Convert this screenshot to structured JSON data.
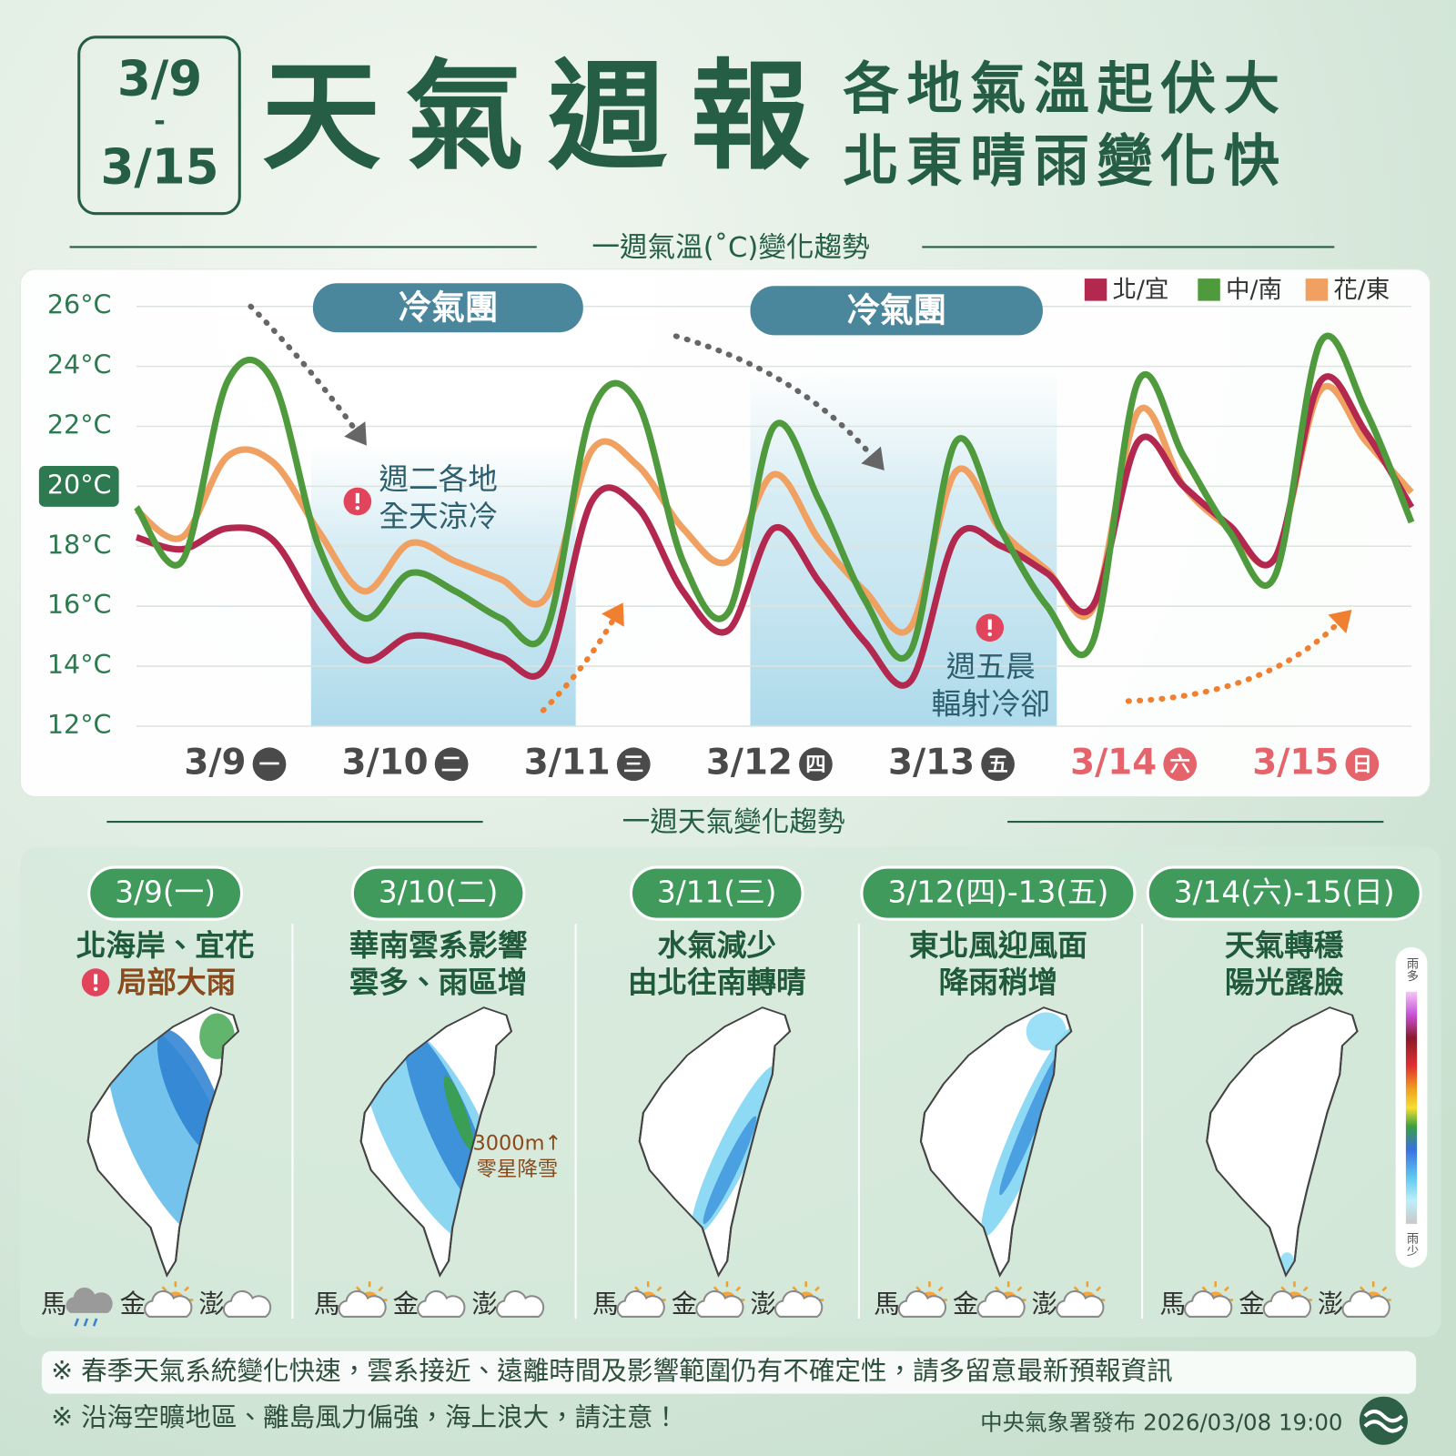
{
  "header": {
    "date_start": "3/9",
    "date_sep": "-",
    "date_end": "3/15",
    "title": "天氣週報",
    "subtitle": [
      "各地氣溫起伏大",
      "北東晴雨變化快"
    ]
  },
  "chart_data": {
    "type": "line",
    "title": "一週氣溫(˚C)變化趨勢",
    "categories": [
      null,
      null,
      "3/9",
      null,
      null,
      null,
      "3/10",
      null,
      null,
      null,
      "3/11",
      null,
      null,
      null,
      "3/12",
      null,
      null,
      null,
      "3/13",
      null,
      null,
      null,
      "3/14",
      null,
      null,
      null,
      "3/15",
      null,
      null
    ],
    "weekdays": [
      null,
      null,
      "一",
      null,
      null,
      null,
      "二",
      null,
      null,
      null,
      "三",
      null,
      null,
      null,
      "四",
      null,
      null,
      null,
      "五",
      null,
      null,
      null,
      "六",
      null,
      null,
      null,
      "日",
      null,
      null
    ],
    "category_colors": [
      null,
      null,
      "#4a4a4a",
      null,
      null,
      null,
      "#4a4a4a",
      null,
      null,
      null,
      "#4a4a4a",
      null,
      null,
      null,
      "#4a4a4a",
      null,
      null,
      null,
      "#4a4a4a",
      null,
      null,
      null,
      "#e5646c",
      null,
      null,
      null,
      "#e5646c",
      null,
      null
    ],
    "series": [
      {
        "name": "北/宜",
        "color": "#b3284f",
        "values": [
          18.3,
          17.9,
          18.6,
          18.2,
          15.8,
          14.2,
          15.0,
          14.8,
          14.3,
          14.0,
          19.5,
          19.3,
          16.5,
          15.2,
          18.6,
          16.8,
          14.8,
          13.5,
          18.3,
          18.0,
          17.1,
          16.0,
          21.5,
          20.0,
          18.7,
          17.6,
          23.5,
          21.8,
          19.3
        ]
      },
      {
        "name": "中/南",
        "color": "#4e9a3c",
        "values": [
          19.3,
          17.5,
          23.5,
          23.5,
          18.0,
          15.6,
          17.1,
          16.5,
          15.6,
          15.2,
          22.5,
          22.8,
          17.5,
          15.8,
          22.0,
          19.5,
          16.2,
          14.5,
          21.5,
          18.5,
          16.0,
          14.8,
          23.5,
          21.0,
          18.5,
          17.0,
          24.8,
          22.5,
          18.8
        ]
      },
      {
        "name": "花/東",
        "color": "#f0a060",
        "values": [
          19.2,
          18.3,
          21.0,
          20.8,
          18.5,
          16.5,
          18.1,
          17.5,
          16.9,
          16.3,
          21.2,
          20.7,
          18.6,
          17.5,
          20.4,
          18.2,
          16.5,
          15.3,
          20.5,
          18.5,
          17.2,
          15.9,
          22.5,
          20.0,
          18.6,
          17.6,
          23.2,
          21.5,
          19.8
        ]
      }
    ],
    "ylim": [
      12,
      26
    ],
    "yticks": [
      {
        "value": 12,
        "label": "12°C"
      },
      {
        "value": 14,
        "label": "14°C"
      },
      {
        "value": 16,
        "label": "16°C"
      },
      {
        "value": 18,
        "label": "18°C"
      },
      {
        "value": 20,
        "label": "20°C"
      },
      {
        "value": 22,
        "label": "22°C"
      },
      {
        "value": 24,
        "label": "24°C"
      },
      {
        "value": 26,
        "label": "26°C"
      }
    ],
    "highlight_ytick": 20,
    "grid": true,
    "legend": "top-right",
    "bands": [
      "冷氣團",
      "冷氣團"
    ],
    "notes": [
      [
        "週二各地",
        "全天涼冷"
      ],
      [
        "週五晨",
        "輻射冷卻"
      ]
    ]
  },
  "weather": {
    "title": "一週天氣變化趨勢",
    "panels": [
      {
        "date": "3/9(一)",
        "lines": [
          "北海岸、宜花"
        ],
        "warning": "局部大雨",
        "islands": [
          "馬",
          "金",
          "澎"
        ],
        "icons": [
          "rain",
          "sun-cloud",
          "cloud"
        ]
      },
      {
        "date": "3/10(二)",
        "lines": [
          "華南雲系影響",
          "雲多、雨區增"
        ],
        "note": [
          "3000m↑",
          "零星降雪"
        ],
        "islands": [
          "馬",
          "金",
          "澎"
        ],
        "icons": [
          "sun-cloud",
          "cloud",
          "cloud"
        ]
      },
      {
        "date": "3/11(三)",
        "lines": [
          "水氣減少",
          "由北往南轉晴"
        ],
        "islands": [
          "馬",
          "金",
          "澎"
        ],
        "icons": [
          "sun-cloud",
          "sun-cloud",
          "sun-cloud"
        ]
      },
      {
        "date": "3/12(四)-13(五)",
        "lines": [
          "東北風迎風面",
          "降雨稍增"
        ],
        "islands": [
          "馬",
          "金",
          "澎"
        ],
        "icons": [
          "sun-cloud",
          "sun-cloud",
          "sun-cloud"
        ]
      },
      {
        "date": "3/14(六)-15(日)",
        "lines": [
          "天氣轉穩",
          "陽光露臉"
        ],
        "islands": [
          "馬",
          "金",
          "澎"
        ],
        "icons": [
          "sun-cloud",
          "sun-cloud",
          "sun-cloud"
        ]
      }
    ],
    "scale": {
      "top": "雨多",
      "bottom": "雨少"
    }
  },
  "footer": {
    "notes": [
      "※ 春季天氣系統變化快速，雲系接近、遠離時間及影響範圍仍有不確定性，請多留意最新預報資訊",
      "※ 沿海空曠地區、離島風力偏強，海上浪大，請注意！"
    ],
    "publisher": "中央氣象署發布 2026/03/08 19:00"
  }
}
